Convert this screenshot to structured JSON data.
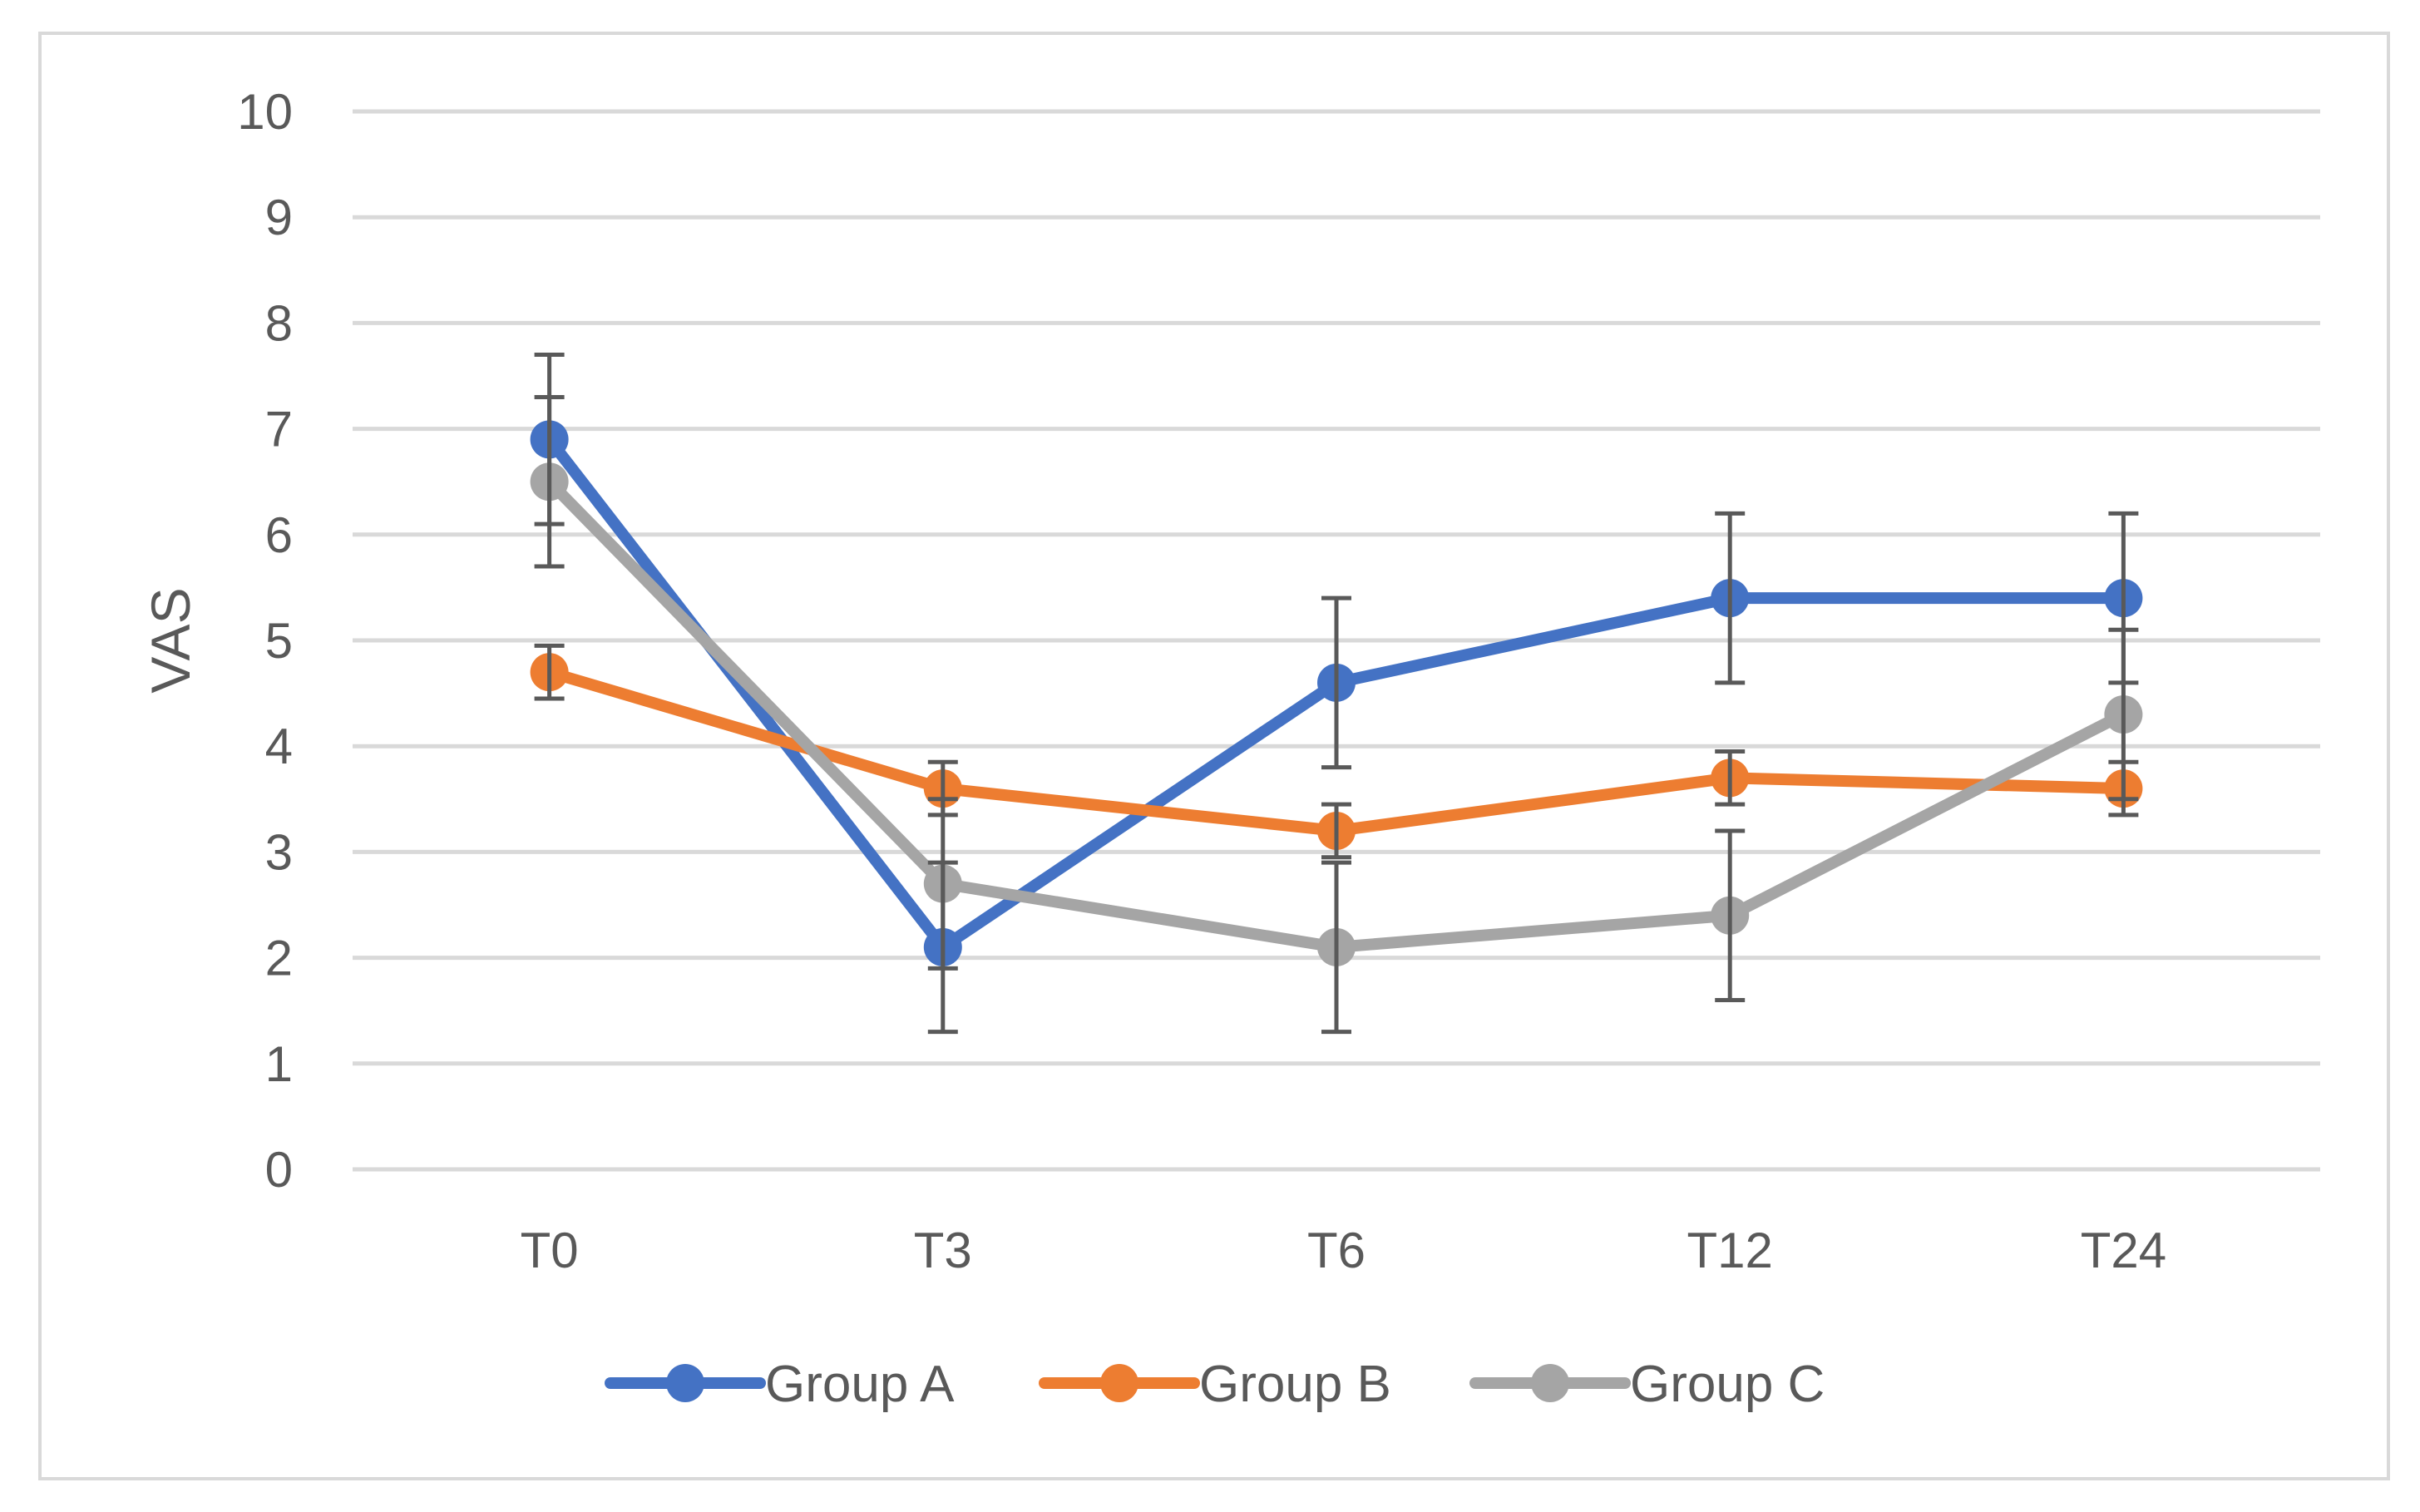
{
  "chart_data": {
    "type": "line",
    "title": "",
    "xlabel": "",
    "ylabel": "VAS",
    "ylim": [
      0,
      10
    ],
    "yticks": [
      "0",
      "1",
      "2",
      "3",
      "4",
      "5",
      "6",
      "7",
      "8",
      "9",
      "10"
    ],
    "categories": [
      "T0",
      "T3",
      "T6",
      "T12",
      "T24"
    ],
    "grid": true,
    "legend_position": "bottom",
    "series": [
      {
        "name": "Group A",
        "color": "#4472c4",
        "values": [
          6.9,
          2.1,
          4.6,
          5.4,
          5.4
        ],
        "error": [
          0.8,
          0.8,
          0.8,
          0.8,
          0.8
        ]
      },
      {
        "name": "Group B",
        "color": "#ed7d31",
        "values": [
          4.7,
          3.6,
          3.2,
          3.7,
          3.6
        ],
        "error": [
          0.25,
          0.25,
          0.25,
          0.25,
          0.25
        ]
      },
      {
        "name": "Group C",
        "color": "#a5a5a5",
        "values": [
          6.5,
          2.7,
          2.1,
          2.4,
          4.3
        ],
        "error": [
          0.8,
          0.8,
          0.8,
          0.8,
          0.8
        ]
      }
    ],
    "error_bar_color": "#595959"
  }
}
